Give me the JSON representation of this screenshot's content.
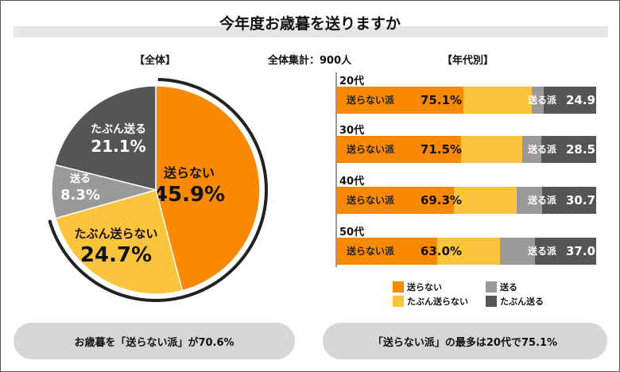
{
  "title": "今年度お歳暮を送りますか",
  "overall_label": "【全体】",
  "total_label": "全体集計：900人",
  "age_label": "【年代別】",
  "colors": {
    "no": "#f98a00",
    "maybe_no": "#fcc43c",
    "yes": "#999999",
    "maybe_yes": "#555555"
  },
  "chart_data": [
    {
      "type": "pie",
      "title": "【全体】",
      "slices": [
        {
          "name": "送らない",
          "value": 45.9,
          "label": "45.9%"
        },
        {
          "name": "たぶん送らない",
          "value": 24.7,
          "label": "24.7%"
        },
        {
          "name": "送る",
          "value": 8.3,
          "label": "8.3%"
        },
        {
          "name": "たぶん送る",
          "value": 21.1,
          "label": "21.1%"
        }
      ]
    },
    {
      "type": "bar",
      "orientation": "horizontal-stacked",
      "title": "【年代別】",
      "categories": [
        "20代",
        "30代",
        "40代",
        "50代"
      ],
      "series": [
        {
          "name": "送らない",
          "values": [
            48.9,
            47.7,
            45.0,
            38.5
          ]
        },
        {
          "name": "たぶん送らない",
          "values": [
            26.2,
            23.8,
            24.3,
            24.5
          ]
        },
        {
          "name": "送る",
          "values": [
            4.6,
            7.3,
            9.8,
            13.5
          ]
        },
        {
          "name": "たぶん送る",
          "values": [
            20.3,
            21.2,
            20.9,
            23.5
          ]
        }
      ],
      "no_label": "送らない派",
      "yes_label": "送る派",
      "no_totals": [
        "75.1%",
        "71.5%",
        "69.3%",
        "63.0%"
      ],
      "yes_totals": [
        "24.9",
        "28.5",
        "30.7",
        "37.0"
      ],
      "xlim": [
        0,
        100
      ]
    }
  ],
  "legend": [
    "送らない",
    "送る",
    "たぶん送らない",
    "たぶん送る"
  ],
  "summary_left": "お歳暮を「送らない派」が70.6%",
  "summary_right": "「送らない派」の最多は20代で75.1%"
}
